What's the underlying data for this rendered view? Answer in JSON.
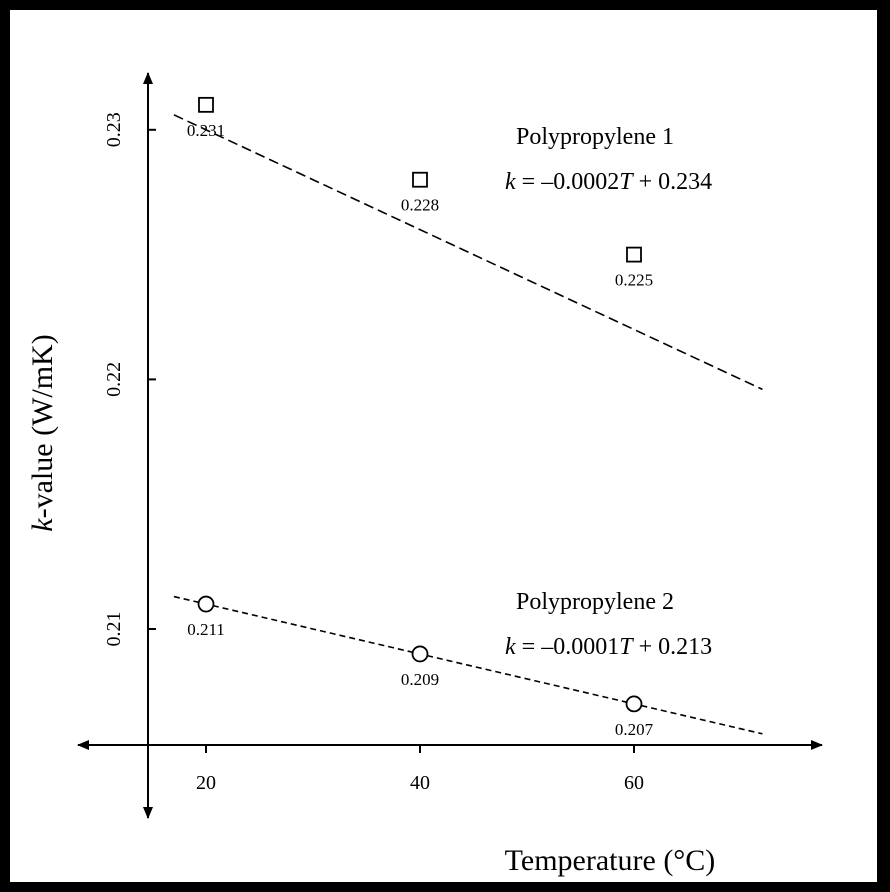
{
  "chart_data": {
    "type": "scatter",
    "xlabel": "Temperature (°C)",
    "ylabel_italic": "k",
    "ylabel_rest": "-value (W/mK)",
    "x_ticks": [
      "20",
      "40",
      "60"
    ],
    "y_ticks": [
      "0.21",
      "0.22",
      "0.23"
    ],
    "xlim": [
      8,
      76
    ],
    "ylim": [
      0.2055,
      0.2328
    ],
    "grid": false,
    "legend": "none",
    "series": [
      {
        "name": "Polypropylene 1",
        "marker": "square",
        "line_style": "long-dash",
        "x": [
          20,
          40,
          60
        ],
        "y": [
          0.231,
          0.228,
          0.225
        ],
        "labels": [
          "0.231",
          "0.228",
          "0.225"
        ],
        "fit": {
          "slope": -0.0002,
          "intercept": 0.234,
          "x_range": [
            17,
            72
          ]
        },
        "equation": {
          "k": "k",
          "eq": " = –0.0002",
          "T": "T",
          "rest": " + 0.234"
        }
      },
      {
        "name": "Polypropylene 2",
        "marker": "circle",
        "line_style": "short-dash",
        "x": [
          20,
          40,
          60
        ],
        "y": [
          0.211,
          0.209,
          0.207
        ],
        "labels": [
          "0.211",
          "0.209",
          "0.207"
        ],
        "fit": {
          "slope": -0.0001,
          "intercept": 0.213,
          "x_range": [
            17,
            72
          ]
        },
        "equation": {
          "k": "k",
          "eq": " = –0.0001",
          "T": "T",
          "rest": " + 0.213"
        }
      }
    ],
    "colors": {
      "axis": "#000000",
      "line": "#000000",
      "marker": "#000000"
    }
  }
}
